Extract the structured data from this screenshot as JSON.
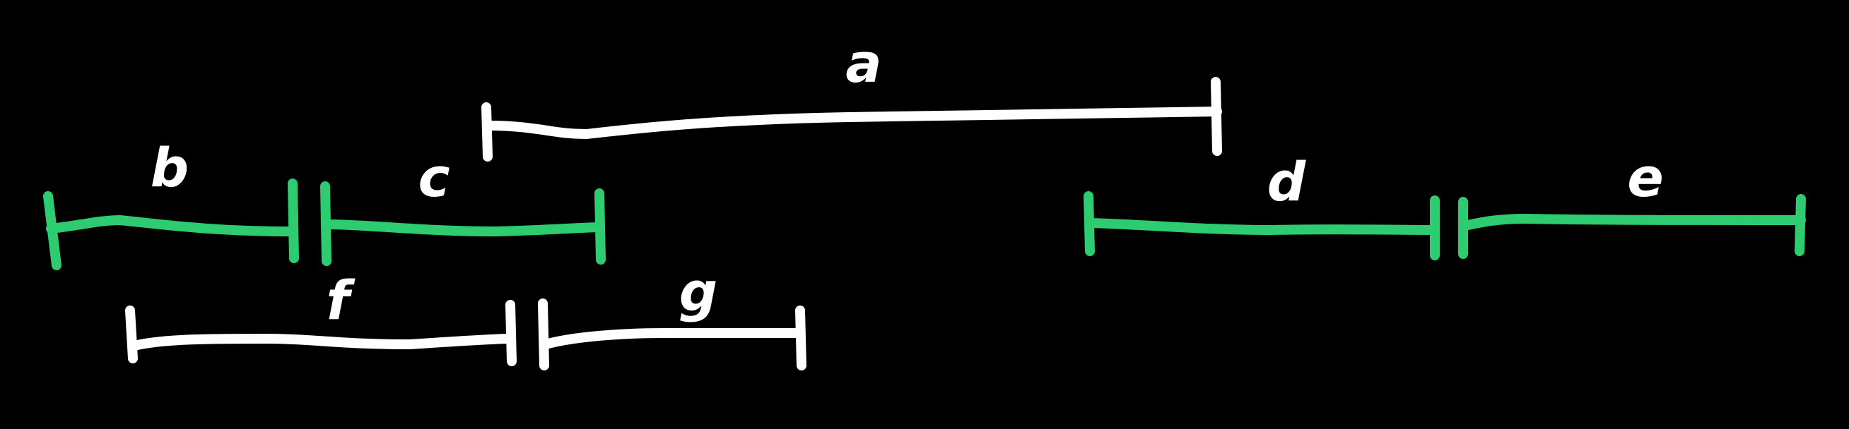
{
  "colors": {
    "background": "#000000",
    "white": "#ffffff",
    "green": "#2ecc71"
  },
  "segments": [
    {
      "label": "a",
      "color": "white"
    },
    {
      "label": "b",
      "color": "green"
    },
    {
      "label": "c",
      "color": "green"
    },
    {
      "label": "d",
      "color": "green"
    },
    {
      "label": "e",
      "color": "green"
    },
    {
      "label": "f",
      "color": "white"
    },
    {
      "label": "g",
      "color": "white"
    }
  ]
}
